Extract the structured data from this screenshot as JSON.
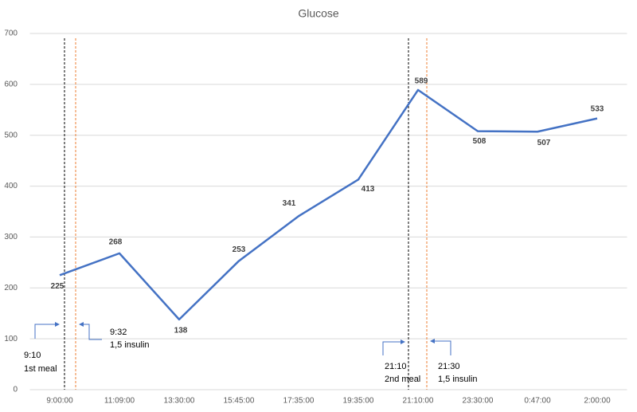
{
  "chart_data": {
    "type": "line",
    "title": "Glucose",
    "categories": [
      "9:00:00",
      "11:09:00",
      "13:30:00",
      "15:45:00",
      "17:35:00",
      "19:35:00",
      "21:10:00",
      "23:30:00",
      "0:47:00",
      "2:00:00"
    ],
    "series": [
      {
        "name": "Glucose",
        "color": "#4472c4",
        "values": [
          225,
          268,
          138,
          253,
          341,
          413,
          589,
          508,
          507,
          533
        ]
      }
    ],
    "ylim": [
      0,
      700
    ],
    "yticks": [
      0,
      100,
      200,
      300,
      400,
      500,
      600,
      700
    ],
    "grid": true,
    "annotations": [
      {
        "time": "9:10",
        "label": "1st meal"
      },
      {
        "time": "9:32",
        "label": "1,5 insulin"
      },
      {
        "time": "21:10",
        "label": "2nd meal"
      },
      {
        "time": "21:30",
        "label": "1,5 insulin"
      }
    ]
  }
}
